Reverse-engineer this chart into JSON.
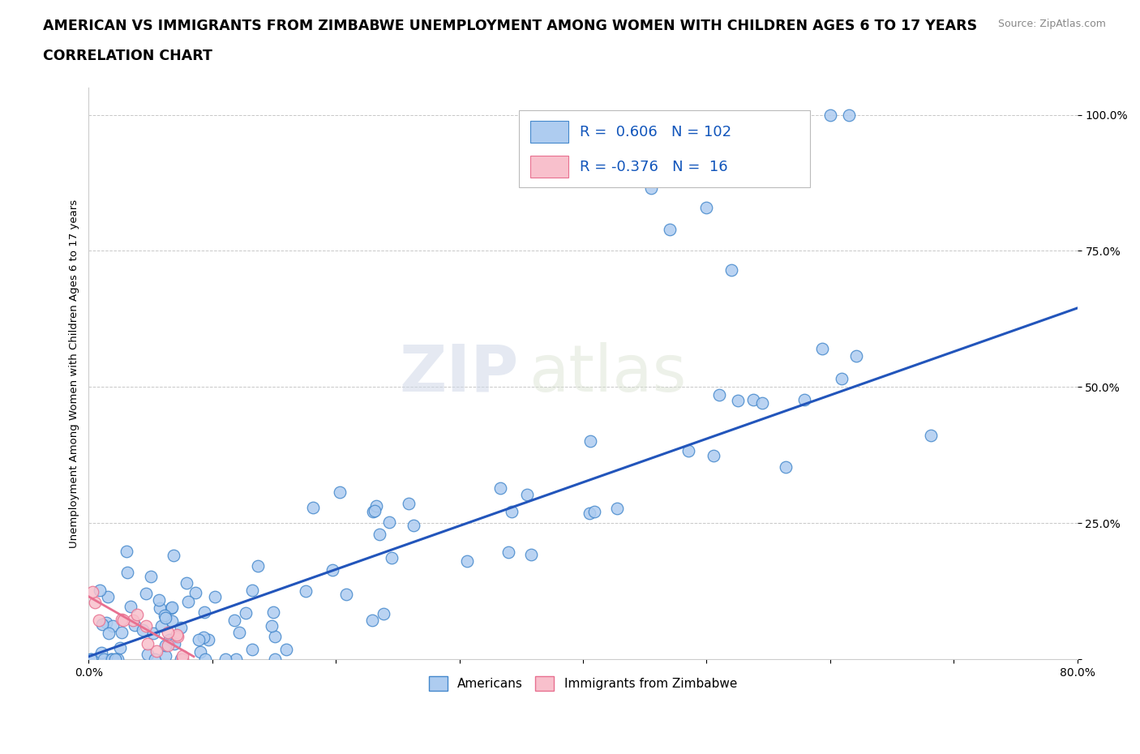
{
  "title_line1": "AMERICAN VS IMMIGRANTS FROM ZIMBABWE UNEMPLOYMENT AMONG WOMEN WITH CHILDREN AGES 6 TO 17 YEARS",
  "title_line2": "CORRELATION CHART",
  "source_text": "Source: ZipAtlas.com",
  "ylabel": "Unemployment Among Women with Children Ages 6 to 17 years",
  "xlim": [
    0.0,
    0.8
  ],
  "ylim": [
    0.0,
    1.05
  ],
  "ytick_positions": [
    0.0,
    0.25,
    0.5,
    0.75,
    1.0
  ],
  "ytick_labels": [
    "",
    "25.0%",
    "50.0%",
    "75.0%",
    "100.0%"
  ],
  "grid_color": "#c8c8c8",
  "background_color": "#ffffff",
  "americans_color": "#aeccf0",
  "americans_edge_color": "#4488cc",
  "zimbabwe_color": "#f8c0cc",
  "zimbabwe_edge_color": "#e87090",
  "regression_blue_color": "#2255bb",
  "regression_am_x0": 0.0,
  "regression_am_y0": 0.005,
  "regression_am_x1": 0.8,
  "regression_am_y1": 0.645,
  "regression_zim_x0": 0.0,
  "regression_zim_y0": 0.115,
  "regression_zim_x1": 0.085,
  "regression_zim_y1": 0.005,
  "legend_r_american": "0.606",
  "legend_n_american": "102",
  "legend_r_zimbabwe": "-0.376",
  "legend_n_zimbabwe": "16",
  "title_fontsize": 12.5,
  "subtitle_fontsize": 12.5,
  "axis_label_fontsize": 9.5,
  "tick_fontsize": 10,
  "legend_fontsize": 13
}
